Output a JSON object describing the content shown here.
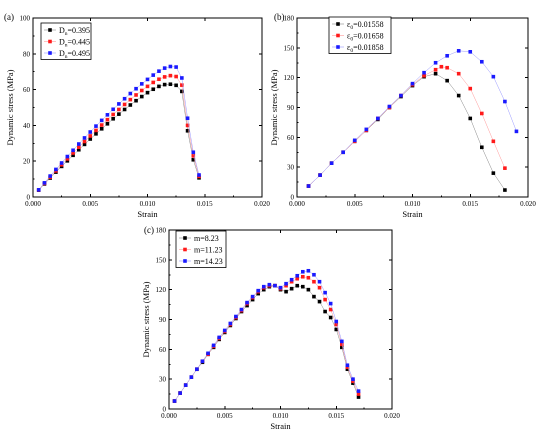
{
  "chart_data": [
    {
      "panel": "(a)",
      "type": "line",
      "xlabel": "Strain",
      "ylabel": "Dynamic stress (MPa)",
      "xlim": [
        0,
        0.02
      ],
      "ylim": [
        0,
        100
      ],
      "xticks": [
        "0.000",
        "0.005",
        "0.010",
        "0.015",
        "0.020"
      ],
      "yticks": [
        "0",
        "20",
        "40",
        "60",
        "80",
        "100"
      ],
      "legend_position": "top-left",
      "series": [
        {
          "name_main": "D",
          "name_sub": "n",
          "name_rest": "=0.395",
          "color": "#000000",
          "line_color": "#888888",
          "x": [
            0.0005,
            0.001,
            0.0015,
            0.002,
            0.0025,
            0.003,
            0.0035,
            0.004,
            0.0045,
            0.005,
            0.0055,
            0.006,
            0.0065,
            0.007,
            0.0075,
            0.008,
            0.0085,
            0.009,
            0.0095,
            0.01,
            0.0105,
            0.011,
            0.0115,
            0.012,
            0.0125,
            0.013,
            0.0135,
            0.014,
            0.0145
          ],
          "y": [
            3.8,
            7.3,
            10.6,
            13.9,
            17.1,
            20.2,
            23.3,
            26.4,
            29.4,
            32.4,
            35.3,
            38.1,
            40.9,
            43.7,
            46.3,
            48.9,
            51.4,
            53.8,
            56.1,
            58.3,
            60.2,
            61.8,
            62.8,
            63.0,
            62.4,
            59.0,
            37.0,
            20.8,
            10.7
          ]
        },
        {
          "name_main": "D",
          "name_sub": "n",
          "name_rest": "=0.445",
          "color": "#ff1a1a",
          "line_color": "#ff9999",
          "x": [
            0.0005,
            0.001,
            0.0015,
            0.002,
            0.0025,
            0.003,
            0.0035,
            0.004,
            0.0045,
            0.005,
            0.0055,
            0.006,
            0.0065,
            0.007,
            0.0075,
            0.008,
            0.0085,
            0.009,
            0.0095,
            0.01,
            0.0105,
            0.011,
            0.0115,
            0.012,
            0.0125,
            0.013,
            0.0135,
            0.014,
            0.0145
          ],
          "y": [
            3.9,
            7.6,
            11.1,
            14.6,
            18.0,
            21.3,
            24.6,
            27.8,
            31.0,
            34.1,
            37.2,
            40.2,
            43.2,
            46.1,
            48.9,
            51.7,
            54.4,
            57.0,
            59.5,
            61.8,
            64.0,
            65.8,
            67.1,
            67.8,
            67.3,
            62.5,
            40.0,
            23.0,
            11.5
          ]
        },
        {
          "name_main": "D",
          "name_sub": "n",
          "name_rest": "=0.495",
          "color": "#1a1aff",
          "line_color": "#9999ff",
          "x": [
            0.0005,
            0.001,
            0.0015,
            0.002,
            0.0025,
            0.003,
            0.0035,
            0.004,
            0.0045,
            0.005,
            0.0055,
            0.006,
            0.0065,
            0.007,
            0.0075,
            0.008,
            0.0085,
            0.009,
            0.0095,
            0.01,
            0.0105,
            0.011,
            0.0115,
            0.012,
            0.0125,
            0.013,
            0.0135,
            0.014,
            0.0145
          ],
          "y": [
            4.0,
            7.9,
            11.7,
            15.4,
            19.0,
            22.6,
            26.1,
            29.6,
            33.0,
            36.3,
            39.6,
            42.8,
            45.9,
            49.0,
            52.0,
            54.9,
            57.8,
            60.5,
            63.2,
            65.7,
            68.1,
            70.3,
            72.0,
            72.9,
            72.6,
            66.5,
            44.0,
            25.0,
            12.3
          ]
        }
      ]
    },
    {
      "panel": "(b)",
      "type": "line",
      "xlabel": "Strain",
      "ylabel": "Dynamic stress (MPa)",
      "xlim": [
        0,
        0.02
      ],
      "ylim": [
        0,
        180
      ],
      "xticks": [
        "0.000",
        "0.005",
        "0.010",
        "0.015",
        "0.020"
      ],
      "yticks": [
        "0",
        "30",
        "60",
        "90",
        "120",
        "150",
        "180"
      ],
      "legend_position": "top-left",
      "series": [
        {
          "name_main": "ε",
          "name_sub": "0",
          "name_rest": "=0.01558",
          "color": "#000000",
          "line_color": "#888888",
          "x": [
            0.001,
            0.002,
            0.003,
            0.004,
            0.005,
            0.006,
            0.007,
            0.008,
            0.009,
            0.01,
            0.011,
            0.012,
            0.013,
            0.014,
            0.015,
            0.016,
            0.017,
            0.018
          ],
          "y": [
            11,
            22,
            34,
            45,
            56,
            67,
            78,
            90,
            101,
            112,
            121,
            124,
            117,
            102,
            79,
            50,
            24,
            7
          ]
        },
        {
          "name_main": "ε",
          "name_sub": "0",
          "name_rest": "=0.01658",
          "color": "#ff1a1a",
          "line_color": "#ff9999",
          "x": [
            0.001,
            0.002,
            0.003,
            0.004,
            0.005,
            0.006,
            0.007,
            0.008,
            0.009,
            0.01,
            0.011,
            0.012,
            0.0125,
            0.013,
            0.014,
            0.015,
            0.016,
            0.017,
            0.018
          ],
          "y": [
            11,
            22,
            34,
            45,
            56,
            67,
            79,
            90,
            102,
            113,
            122,
            128,
            131,
            130,
            124,
            109,
            84,
            56,
            29
          ]
        },
        {
          "name_main": "ε",
          "name_sub": "0",
          "name_rest": "=0.01858",
          "color": "#1a1aff",
          "line_color": "#9999ff",
          "x": [
            0.001,
            0.002,
            0.003,
            0.004,
            0.005,
            0.006,
            0.007,
            0.008,
            0.009,
            0.01,
            0.011,
            0.012,
            0.013,
            0.014,
            0.015,
            0.016,
            0.017,
            0.018,
            0.019
          ],
          "y": [
            11,
            22,
            34,
            45,
            57,
            68,
            79,
            91,
            102,
            114,
            125,
            135,
            142,
            147,
            146,
            136,
            121,
            96,
            66
          ]
        }
      ]
    },
    {
      "panel": "(c)",
      "type": "line",
      "xlabel": "Strain",
      "ylabel": "Dynamic stress (MPa)",
      "xlim": [
        0,
        0.02
      ],
      "ylim": [
        0,
        180
      ],
      "xticks": [
        "0.000",
        "0.005",
        "0.010",
        "0.015",
        "0.020"
      ],
      "yticks": [
        "0",
        "30",
        "60",
        "90",
        "120",
        "150",
        "180"
      ],
      "legend_position": "top-left",
      "series": [
        {
          "name_main": "m=8.23",
          "name_sub": "",
          "name_rest": "",
          "color": "#000000",
          "line_color": "#888888",
          "x": [
            0.0005,
            0.001,
            0.0015,
            0.002,
            0.0025,
            0.003,
            0.0035,
            0.004,
            0.0045,
            0.005,
            0.0055,
            0.006,
            0.0065,
            0.007,
            0.0075,
            0.008,
            0.0085,
            0.009,
            0.0095,
            0.01,
            0.0105,
            0.011,
            0.0115,
            0.012,
            0.0125,
            0.013,
            0.0135,
            0.014,
            0.0145,
            0.015,
            0.0155,
            0.016,
            0.0165,
            0.017
          ],
          "y": [
            8,
            16,
            24,
            32,
            40,
            47,
            55,
            62,
            70,
            77,
            84,
            91,
            98,
            104,
            110,
            116,
            120,
            123,
            124,
            120,
            118,
            121,
            124,
            123,
            120,
            113,
            108,
            98,
            92,
            80,
            62,
            40,
            26,
            12
          ]
        },
        {
          "name_main": "m=11.23",
          "name_sub": "",
          "name_rest": "",
          "color": "#ff1a1a",
          "line_color": "#ff9999",
          "x": [
            0.0005,
            0.001,
            0.0015,
            0.002,
            0.0025,
            0.003,
            0.0035,
            0.004,
            0.0045,
            0.005,
            0.0055,
            0.006,
            0.0065,
            0.007,
            0.0075,
            0.008,
            0.0085,
            0.009,
            0.0095,
            0.01,
            0.0105,
            0.011,
            0.0115,
            0.012,
            0.0125,
            0.013,
            0.0135,
            0.014,
            0.0145,
            0.015,
            0.0155,
            0.016,
            0.0165,
            0.017
          ],
          "y": [
            8,
            16,
            24,
            32,
            40,
            48,
            55,
            63,
            71,
            78,
            85,
            92,
            99,
            106,
            112,
            118,
            122,
            124,
            124,
            121,
            124,
            128,
            131,
            133,
            132,
            128,
            122,
            110,
            100,
            85,
            65,
            42,
            28,
            15
          ]
        },
        {
          "name_main": "m=14.23",
          "name_sub": "",
          "name_rest": "",
          "color": "#1a1aff",
          "line_color": "#9999ff",
          "x": [
            0.0005,
            0.001,
            0.0015,
            0.002,
            0.0025,
            0.003,
            0.0035,
            0.004,
            0.0045,
            0.005,
            0.0055,
            0.006,
            0.0065,
            0.007,
            0.0075,
            0.008,
            0.0085,
            0.009,
            0.0095,
            0.01,
            0.0105,
            0.011,
            0.0115,
            0.012,
            0.0125,
            0.013,
            0.0135,
            0.014,
            0.0145,
            0.015,
            0.0155,
            0.016,
            0.0165,
            0.017
          ],
          "y": [
            8,
            16,
            24,
            32,
            40,
            48,
            56,
            64,
            72,
            79,
            86,
            93,
            100,
            107,
            113,
            119,
            123,
            125,
            124,
            122,
            126,
            130,
            134,
            138,
            139,
            135,
            128,
            117,
            106,
            88,
            68,
            44,
            30,
            18
          ]
        }
      ]
    }
  ]
}
